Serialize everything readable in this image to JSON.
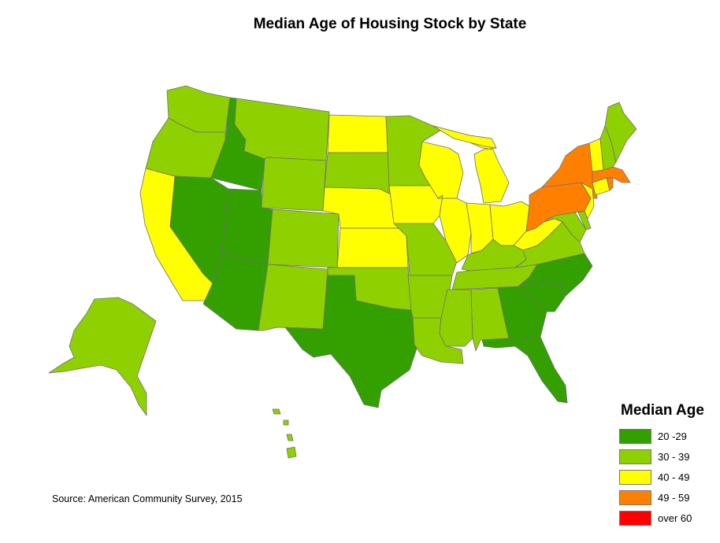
{
  "title": "Median Age of Housing Stock by State",
  "source": "Source: American Community Survey, 2015",
  "legend": {
    "title": "Median Age",
    "classes": [
      {
        "label": "20 -29",
        "color": "#33a000"
      },
      {
        "label": "30 - 39",
        "color": "#8fd100"
      },
      {
        "label": "40 - 49",
        "color": "#ffff00"
      },
      {
        "label": "49 - 59",
        "color": "#ff8000"
      },
      {
        "label": "over 60",
        "color": "#ff0000"
      }
    ]
  },
  "state_classes": {
    "WA": "30 - 39",
    "OR": "30 - 39",
    "CA": "40 - 49",
    "ID": "20 -29",
    "NV": "20 -29",
    "MT": "30 - 39",
    "WY": "30 - 39",
    "UT": "20 -29",
    "AZ": "20 -29",
    "CO": "30 - 39",
    "NM": "30 - 39",
    "ND": "40 - 49",
    "SD": "30 - 39",
    "NE": "40 - 49",
    "KS": "40 - 49",
    "OK": "30 - 39",
    "TX": "20 -29",
    "MN": "30 - 39",
    "IA": "40 - 49",
    "MO": "30 - 39",
    "AR": "30 - 39",
    "LA": "30 - 39",
    "WI": "40 - 49",
    "IL": "40 - 49",
    "MI": "40 - 49",
    "IN": "40 - 49",
    "OH": "40 - 49",
    "KY": "30 - 39",
    "TN": "30 - 39",
    "MS": "30 - 39",
    "AL": "30 - 39",
    "GA": "20 -29",
    "FL": "20 -29",
    "SC": "20 -29",
    "NC": "20 -29",
    "VA": "30 - 39",
    "WV": "40 - 49",
    "MD": "30 - 39",
    "DE": "30 - 39",
    "PA": "49 - 59",
    "NY": "49 - 59",
    "NJ": "40 - 49",
    "CT": "40 - 49",
    "RI": "49 - 59",
    "MA": "49 - 59",
    "VT": "40 - 49",
    "NH": "30 - 39",
    "ME": "30 - 39",
    "AK": "30 - 39",
    "HI": "30 - 39"
  }
}
